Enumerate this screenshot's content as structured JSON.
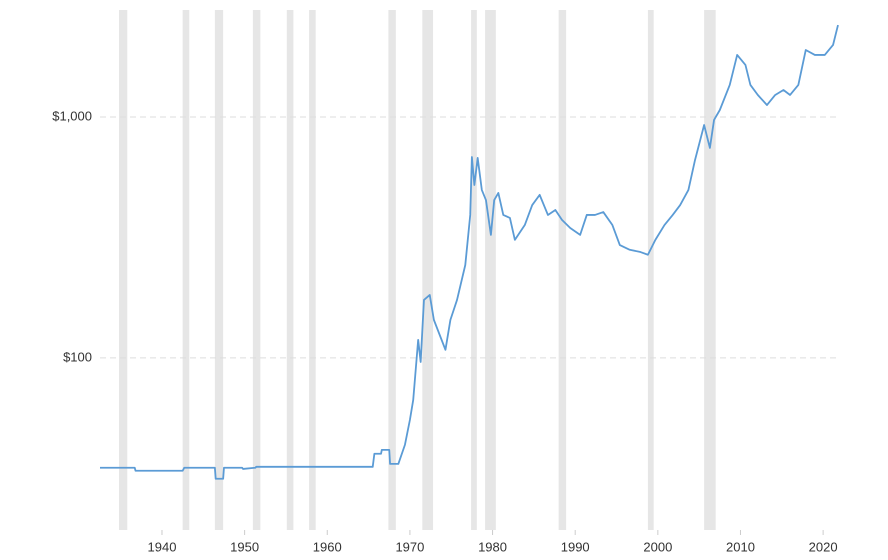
{
  "chart_data": {
    "type": "line",
    "log_scale": true,
    "grid": true,
    "xlim": [
      1932.5,
      2021.8
    ],
    "ylim": [
      19.3,
      2780
    ],
    "xticks": [
      1940,
      1950,
      1960,
      1970,
      1980,
      1990,
      2000,
      2010,
      2020
    ],
    "yticks": [
      {
        "value": 100,
        "label": "$100"
      },
      {
        "value": 1000,
        "label": "$1,000"
      }
    ],
    "recession_color": "#e6e6e6",
    "recessions": [
      [
        1934.8,
        1935.8
      ],
      [
        1942.5,
        1943.3
      ],
      [
        1946.4,
        1947.4
      ],
      [
        1951.0,
        1951.9
      ],
      [
        1955.1,
        1955.9
      ],
      [
        1957.8,
        1958.6
      ],
      [
        1967.4,
        1968.3
      ],
      [
        1971.5,
        1972.8
      ],
      [
        1977.4,
        1978.1
      ],
      [
        1979.1,
        1980.4
      ],
      [
        1988.0,
        1988.9
      ],
      [
        1998.8,
        1999.5
      ],
      [
        2005.6,
        2007.0
      ]
    ],
    "x": [
      1932.5,
      1936.7,
      1936.8,
      1942.5,
      1942.7,
      1946.4,
      1946.5,
      1947.4,
      1947.5,
      1949.7,
      1949.8,
      1951.3,
      1951.4,
      1965.5,
      1965.7,
      1966.5,
      1966.6,
      1967.5,
      1967.6,
      1968.6,
      1969.4,
      1970.0,
      1970.4,
      1971.0,
      1971.3,
      1971.7,
      1972.4,
      1972.9,
      1974.3,
      1974.9,
      1975.7,
      1976.7,
      1977.3,
      1977.5,
      1977.8,
      1978.2,
      1978.7,
      1979.2,
      1979.8,
      1980.2,
      1980.7,
      1981.3,
      1982.1,
      1982.7,
      1983.9,
      1984.8,
      1985.7,
      1986.7,
      1987.6,
      1988.4,
      1989.4,
      1990.6,
      1991.4,
      1992.4,
      1993.4,
      1994.5,
      1995.4,
      1996.6,
      1997.9,
      1998.8,
      1999.7,
      2000.8,
      2001.8,
      2002.7,
      2003.7,
      2004.5,
      2005.6,
      2006.3,
      2006.8,
      2007.5,
      2008.7,
      2009.6,
      2010.6,
      2011.2,
      2012.1,
      2013.2,
      2014.2,
      2015.2,
      2016.0,
      2017.0,
      2017.9,
      2019.0,
      2020.2,
      2021.2,
      2021.8
    ],
    "series": [
      {
        "color": "#5b9bd5",
        "values": [
          35,
          35,
          34,
          34,
          35,
          35,
          31.5,
          31.5,
          35,
          35,
          34.6,
          35,
          35.3,
          35.3,
          40,
          40,
          41.5,
          41.5,
          36.3,
          36.3,
          43.6,
          55.3,
          66.9,
          118.8,
          96.2,
          174,
          182.5,
          143.8,
          108,
          143.8,
          174,
          243,
          392,
          682,
          522,
          676,
          498,
          452,
          324,
          452,
          484,
          392,
          381,
          309,
          356,
          431,
          475,
          392,
          411,
          374,
          346,
          324,
          392,
          392,
          403,
          356,
          294,
          281,
          275,
          268,
          309,
          356,
          392,
          431,
          498,
          663,
          926,
          744,
          972,
          1069,
          1358,
          1809,
          1644,
          1358,
          1234,
          1121,
          1234,
          1294,
          1234,
          1358,
          1897,
          1809,
          1809,
          1990,
          2408
        ]
      }
    ]
  }
}
